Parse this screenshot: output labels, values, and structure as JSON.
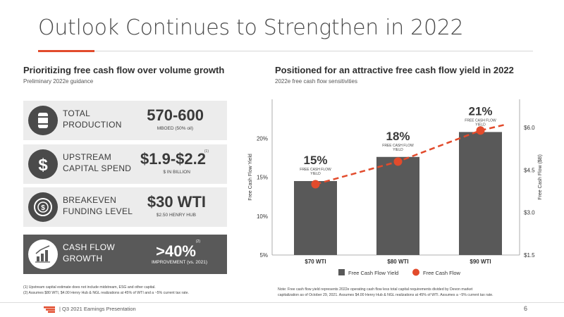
{
  "slide": {
    "title": "Outlook Continues to Strengthen in 2022",
    "footer": "|  Q3 2021 Earnings Presentation",
    "page_number": "6",
    "accent_color": "#e24b2c"
  },
  "left": {
    "heading": "Prioritizing free cash flow over volume growth",
    "subheading": "Preliminary 2022e guidance",
    "kpis": [
      {
        "icon": "oil-barrel-icon",
        "label_line1": "TOTAL",
        "label_line2": "PRODUCTION",
        "value": "570-600",
        "sub": "MBOED (50% oil)",
        "note": ""
      },
      {
        "icon": "dollar-sign-icon",
        "label_line1": "UPSTREAM",
        "label_line2": "CAPITAL SPEND",
        "value": "$1.9-$2.2",
        "sub": "$ IN BILLION",
        "note": "(1)"
      },
      {
        "icon": "funding-cycle-icon",
        "label_line1": "BREAKEVEN",
        "label_line2": "FUNDING LEVEL",
        "value": "$30 WTI",
        "sub": "$2.50 HENRY HUB",
        "note": ""
      },
      {
        "icon": "growth-chart-icon",
        "label_line1": "CASH FLOW",
        "label_line2": "GROWTH",
        "value": ">40%",
        "sub": "IMPROVEMENT (vs. 2021)",
        "note": "(2)"
      }
    ],
    "footnote1": "(1) Upstream capital estimate does not include midstream, ESG and other capital.",
    "footnote2": "(2) Assumes $80 WTI, $4.00 Henry Hub & NGL realizations at 45% of WTI and a ~5% current tax rate."
  },
  "right": {
    "heading": "Positioned for an attractive free cash flow yield in 2022",
    "subheading": "2022e free cash flow sensitivities",
    "note_line1": "Note: Free cash flow yield represents 2022e operating cash flow less total capital requirements divided by Devon market",
    "note_line2": "capitalization as of October 29, 2021. Assumes $4.00 Henry Hub & NGL realizations at 45% of WTI. Assumes a ~5% current tax rate."
  },
  "chart_data": {
    "type": "bar",
    "categories": [
      "$70 WTI",
      "$80 WTI",
      "$90 WTI"
    ],
    "series": [
      {
        "name": "Free Cash Flow Yield",
        "type": "bar",
        "axis": "left",
        "values": [
          14.5,
          17.6,
          20.8
        ],
        "color": "#595959"
      },
      {
        "name": "Free Cash Flow",
        "type": "line",
        "axis": "right",
        "values": [
          4.0,
          4.8,
          5.9
        ],
        "color": "#e24b2c"
      }
    ],
    "bar_labels": [
      "15%",
      "18%",
      "21%"
    ],
    "bar_sublabel_line1": "FREE CASH FLOW",
    "bar_sublabel_line2": "YIELD",
    "ylabel": "Free Cash Flow Yield",
    "y2label": "Free Cash Flow ($B)",
    "ylim": [
      5,
      25
    ],
    "yticks": [
      5,
      10,
      15,
      20
    ],
    "yticklabels": [
      "5%",
      "10%",
      "15%",
      "20%"
    ],
    "y2lim": [
      1.5,
      7.0
    ],
    "y2ticks": [
      1.5,
      3.0,
      4.5,
      6.0
    ],
    "y2ticklabels": [
      "$1.5",
      "$3.0",
      "$4.5",
      "$6.0"
    ],
    "legend_position": "bottom",
    "grid": false
  }
}
